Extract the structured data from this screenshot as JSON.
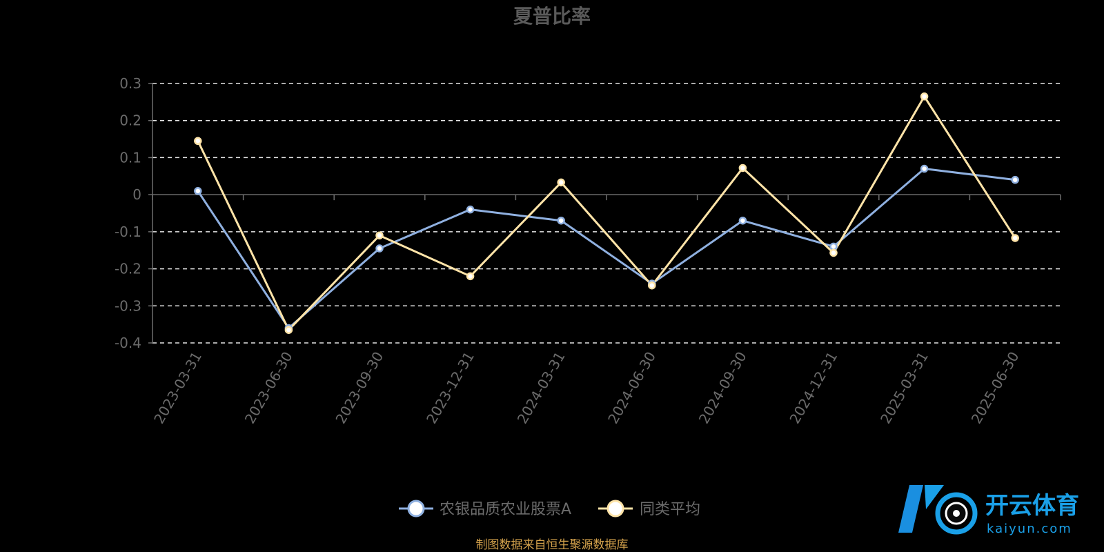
{
  "chart_data": {
    "type": "line",
    "title": "夏普比率",
    "categories": [
      "2023-03-31",
      "2023-06-30",
      "2023-09-30",
      "2023-12-31",
      "2024-03-31",
      "2024-06-30",
      "2024-09-30",
      "2024-12-31",
      "2025-03-31",
      "2025-06-30"
    ],
    "series": [
      {
        "name": "农银品质农业股票A",
        "color": "#8fb0e0",
        "values": [
          0.01,
          -0.36,
          -0.145,
          -0.04,
          -0.07,
          -0.24,
          -0.07,
          -0.14,
          0.07,
          0.04
        ]
      },
      {
        "name": "同类平均",
        "color": "#ffe4a8",
        "values": [
          0.145,
          -0.365,
          -0.11,
          -0.22,
          0.033,
          -0.245,
          0.072,
          -0.157,
          0.265,
          -0.117
        ]
      }
    ],
    "yticks": [
      "0.3",
      "0.2",
      "0.1",
      "0",
      "-0.1",
      "-0.2",
      "-0.3",
      "-0.4"
    ],
    "ylim": [
      -0.4,
      0.3
    ],
    "grid": true,
    "legend_position": "bottom-center"
  },
  "source_note": "制图数据来自恒生聚源数据库",
  "watermark": {
    "logo_text": "开云体育",
    "logo_sub": "kaiyun.com"
  }
}
